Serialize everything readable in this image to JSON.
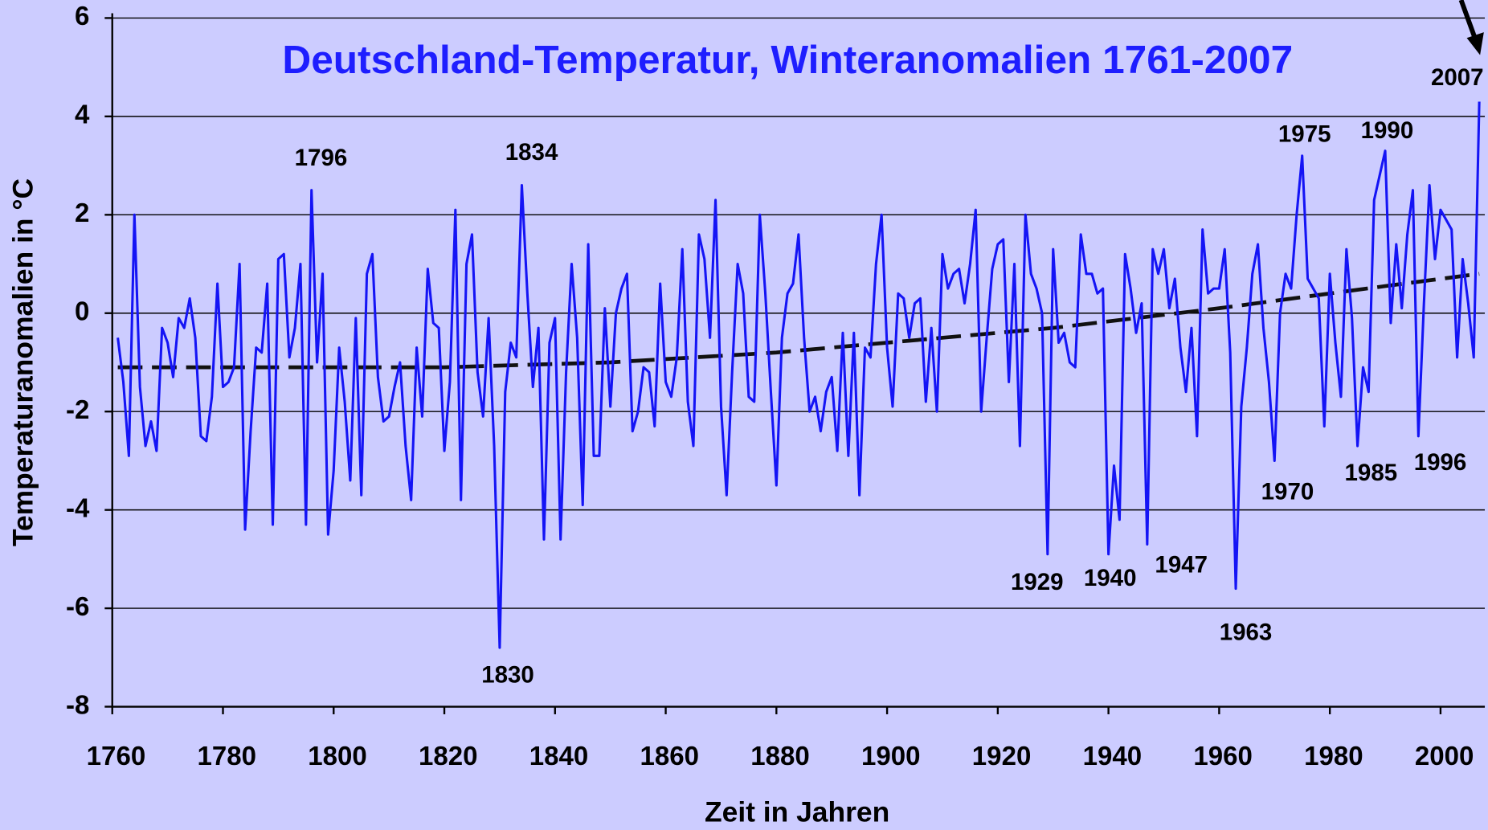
{
  "chart_data": {
    "type": "line",
    "title": "Deutschland-Temperatur, Winteranomalien 1761-2007",
    "x_label": "Zeit in Jahren",
    "y_label": "Temperaturanomalien in °C",
    "xlim": [
      1760,
      2008
    ],
    "xticks": [
      1760,
      1780,
      1800,
      1820,
      1840,
      1860,
      1880,
      1900,
      1920,
      1940,
      1960,
      1980,
      2000
    ],
    "ylim": [
      -8,
      6
    ],
    "yticks": [
      -8,
      -6,
      -4,
      -2,
      0,
      2,
      4,
      6
    ],
    "grid": true,
    "x": [
      1761,
      1762,
      1763,
      1764,
      1765,
      1766,
      1767,
      1768,
      1769,
      1770,
      1771,
      1772,
      1773,
      1774,
      1775,
      1776,
      1777,
      1778,
      1779,
      1780,
      1781,
      1782,
      1783,
      1784,
      1785,
      1786,
      1787,
      1788,
      1789,
      1790,
      1791,
      1792,
      1793,
      1794,
      1795,
      1796,
      1797,
      1798,
      1799,
      1800,
      1801,
      1802,
      1803,
      1804,
      1805,
      1806,
      1807,
      1808,
      1809,
      1810,
      1811,
      1812,
      1813,
      1814,
      1815,
      1816,
      1817,
      1818,
      1819,
      1820,
      1821,
      1822,
      1823,
      1824,
      1825,
      1826,
      1827,
      1828,
      1829,
      1830,
      1831,
      1832,
      1833,
      1834,
      1835,
      1836,
      1837,
      1838,
      1839,
      1840,
      1841,
      1842,
      1843,
      1844,
      1845,
      1846,
      1847,
      1848,
      1849,
      1850,
      1851,
      1852,
      1853,
      1854,
      1855,
      1856,
      1857,
      1858,
      1859,
      1860,
      1861,
      1862,
      1863,
      1864,
      1865,
      1866,
      1867,
      1868,
      1869,
      1870,
      1871,
      1872,
      1873,
      1874,
      1875,
      1876,
      1877,
      1878,
      1879,
      1880,
      1881,
      1882,
      1883,
      1884,
      1885,
      1886,
      1887,
      1888,
      1889,
      1890,
      1891,
      1892,
      1893,
      1894,
      1895,
      1896,
      1897,
      1898,
      1899,
      1900,
      1901,
      1902,
      1903,
      1904,
      1905,
      1906,
      1907,
      1908,
      1909,
      1910,
      1911,
      1912,
      1913,
      1914,
      1915,
      1916,
      1917,
      1918,
      1919,
      1920,
      1921,
      1922,
      1923,
      1924,
      1925,
      1926,
      1927,
      1928,
      1929,
      1930,
      1931,
      1932,
      1933,
      1934,
      1935,
      1936,
      1937,
      1938,
      1939,
      1940,
      1941,
      1942,
      1943,
      1944,
      1945,
      1946,
      1947,
      1948,
      1949,
      1950,
      1951,
      1952,
      1953,
      1954,
      1955,
      1956,
      1957,
      1958,
      1959,
      1960,
      1961,
      1962,
      1963,
      1964,
      1965,
      1966,
      1967,
      1968,
      1969,
      1970,
      1971,
      1972,
      1973,
      1974,
      1975,
      1976,
      1977,
      1978,
      1979,
      1980,
      1981,
      1982,
      1983,
      1984,
      1985,
      1986,
      1987,
      1988,
      1989,
      1990,
      1991,
      1992,
      1993,
      1994,
      1995,
      1996,
      1997,
      1998,
      1999,
      2000,
      2001,
      2002,
      2003,
      2004,
      2005,
      2006,
      2007
    ],
    "series": [
      {
        "color": "#1414f5",
        "values": [
          -0.5,
          -1.4,
          -2.9,
          2.0,
          -1.5,
          -2.7,
          -2.2,
          -2.8,
          -0.3,
          -0.6,
          -1.3,
          -0.1,
          -0.3,
          0.3,
          -0.5,
          -2.5,
          -2.6,
          -1.7,
          0.6,
          -1.5,
          -1.4,
          -1.1,
          1.0,
          -4.4,
          -2.4,
          -0.7,
          -0.8,
          0.6,
          -4.3,
          1.1,
          1.2,
          -0.9,
          -0.3,
          1.0,
          -4.3,
          2.5,
          -1.0,
          0.8,
          -4.5,
          -3.2,
          -0.7,
          -1.8,
          -3.4,
          -0.1,
          -3.7,
          0.8,
          1.2,
          -1.3,
          -2.2,
          -2.1,
          -1.5,
          -1.0,
          -2.7,
          -3.8,
          -0.7,
          -2.1,
          0.9,
          -0.2,
          -0.3,
          -2.8,
          -1.4,
          2.1,
          -3.8,
          1.0,
          1.6,
          -1.2,
          -2.1,
          -0.1,
          -2.7,
          -6.8,
          -1.6,
          -0.6,
          -0.9,
          2.6,
          0.4,
          -1.5,
          -0.3,
          -4.6,
          -0.6,
          -0.1,
          -4.6,
          -1.2,
          1.0,
          -0.5,
          -3.9,
          1.4,
          -2.9,
          -2.9,
          0.1,
          -1.9,
          0.0,
          0.5,
          0.8,
          -2.4,
          -2.0,
          -1.1,
          -1.2,
          -2.3,
          0.6,
          -1.4,
          -1.7,
          -0.9,
          1.3,
          -1.8,
          -2.7,
          1.6,
          1.1,
          -0.5,
          2.3,
          -1.9,
          -3.7,
          -1.2,
          1.0,
          0.4,
          -1.7,
          -1.8,
          2.0,
          0.4,
          -1.6,
          -3.5,
          -0.5,
          0.4,
          0.6,
          1.6,
          -0.5,
          -2.0,
          -1.7,
          -2.4,
          -1.6,
          -1.3,
          -2.8,
          -0.4,
          -2.9,
          -0.4,
          -3.7,
          -0.7,
          -0.9,
          1.0,
          2.0,
          -0.7,
          -1.9,
          0.4,
          0.3,
          -0.5,
          0.2,
          0.3,
          -1.8,
          -0.3,
          -2.0,
          1.2,
          0.5,
          0.8,
          0.9,
          0.2,
          1.0,
          2.1,
          -2.0,
          -0.5,
          0.9,
          1.4,
          1.5,
          -1.4,
          1.0,
          -2.7,
          2.0,
          0.8,
          0.5,
          0.0,
          -4.9,
          1.3,
          -0.6,
          -0.4,
          -1.0,
          -1.1,
          1.6,
          0.8,
          0.8,
          0.4,
          0.5,
          -4.9,
          -3.1,
          -4.2,
          1.2,
          0.5,
          -0.4,
          0.2,
          -4.7,
          1.3,
          0.8,
          1.3,
          0.1,
          0.7,
          -0.7,
          -1.6,
          -0.3,
          -2.5,
          1.7,
          0.4,
          0.5,
          0.5,
          1.3,
          -0.8,
          -5.6,
          -1.9,
          -0.7,
          0.8,
          1.4,
          -0.3,
          -1.4,
          -3.0,
          0.0,
          0.8,
          0.5,
          2.0,
          3.2,
          0.7,
          0.5,
          0.3,
          -2.3,
          0.8,
          -0.6,
          -1.7,
          1.3,
          -0.1,
          -2.7,
          -1.1,
          -1.6,
          2.3,
          2.8,
          3.3,
          -0.2,
          1.4,
          0.1,
          1.6,
          2.5,
          -2.5,
          0.2,
          2.6,
          1.1,
          2.1,
          1.9,
          1.7,
          -0.9,
          1.1,
          0.2,
          -0.9,
          4.3
        ]
      }
    ],
    "trend": {
      "color": "#111111",
      "dashed": true,
      "x": [
        1761,
        1820,
        1850,
        1880,
        1900,
        1930,
        1960,
        1990,
        2007
      ],
      "values": [
        -1.1,
        -1.1,
        -1.0,
        -0.8,
        -0.6,
        -0.3,
        0.1,
        0.55,
        0.8
      ]
    },
    "annotations": [
      "1796",
      "1834",
      "1830",
      "2007",
      "1975",
      "1990",
      "1929",
      "1940",
      "1947",
      "1963",
      "1970",
      "1985",
      "1996"
    ]
  }
}
